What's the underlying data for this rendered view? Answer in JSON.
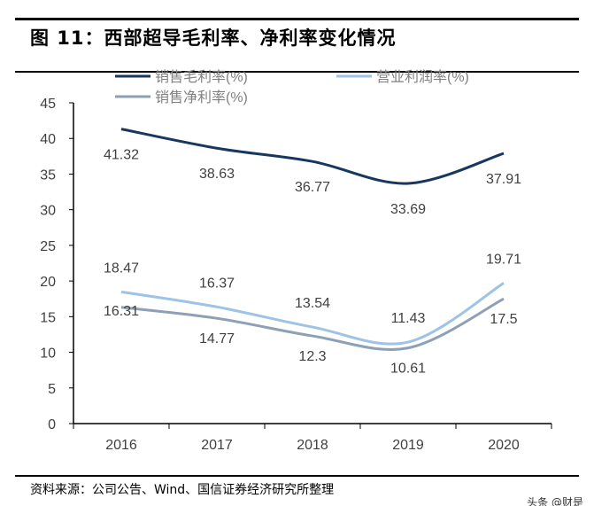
{
  "title": "图 11：西部超导毛利率、净利率变化情况",
  "source": "资料来源：公司公告、Wind、国信证券经济研究所整理",
  "watermark": "头条 @财是",
  "chart_data": {
    "type": "line",
    "categories": [
      "2016",
      "2017",
      "2018",
      "2019",
      "2020"
    ],
    "ylim": [
      0,
      45
    ],
    "yticks": [
      0,
      5,
      10,
      15,
      20,
      25,
      30,
      35,
      40,
      45
    ],
    "grid": false,
    "legend_position": "top",
    "smooth": true,
    "series": [
      {
        "name": "销售毛利率(%)",
        "color": "#17375E",
        "values": [
          41.32,
          38.63,
          36.77,
          33.69,
          37.91
        ],
        "label_pos": "below"
      },
      {
        "name": "营业利润率(%)",
        "color": "#9DC3E6",
        "values": [
          18.47,
          16.37,
          13.54,
          11.43,
          19.71
        ],
        "label_pos": "above"
      },
      {
        "name": "销售净利率(%)",
        "color": "#8EA0B6",
        "values": [
          16.31,
          14.77,
          12.3,
          10.61,
          17.5
        ],
        "label_pos": "below"
      }
    ]
  }
}
